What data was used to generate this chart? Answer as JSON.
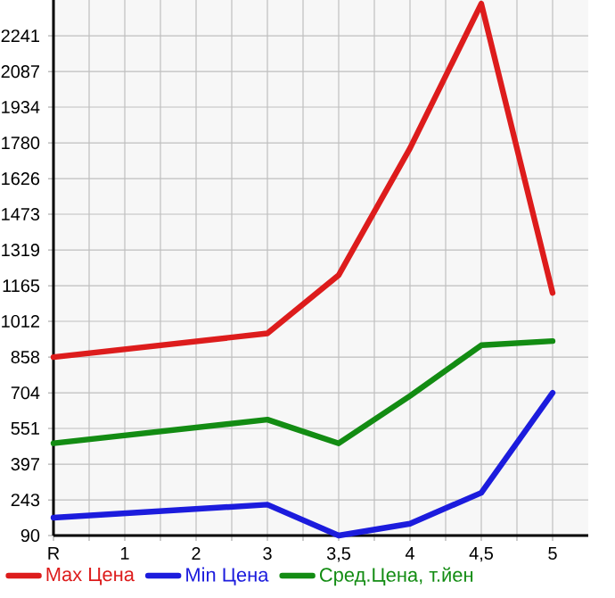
{
  "chart_data": {
    "type": "line",
    "categories": [
      "R",
      "1",
      "2",
      "3",
      "3,5",
      "4",
      "4,5",
      "5"
    ],
    "series": [
      {
        "name": "Max Цена",
        "color": "#dd1c1c",
        "values": [
          858,
          null,
          null,
          960,
          1211,
          1757,
          2379,
          1134
        ]
      },
      {
        "name": "Min Цена",
        "color": "#1c1cdd",
        "values": [
          167,
          null,
          null,
          223,
          90,
          141,
          274,
          704
        ]
      },
      {
        "name": "Сред.Цена, т.йен",
        "color": "#138c13",
        "values": [
          487,
          null,
          null,
          589,
          487,
          691,
          909,
          927
        ]
      }
    ],
    "ylim": [
      90,
      2395
    ],
    "yticks": [
      90,
      243,
      397,
      551,
      704,
      858,
      1012,
      1165,
      1319,
      1473,
      1626,
      1780,
      1934,
      2087,
      2241
    ],
    "grid": true,
    "legend": "bottom"
  }
}
